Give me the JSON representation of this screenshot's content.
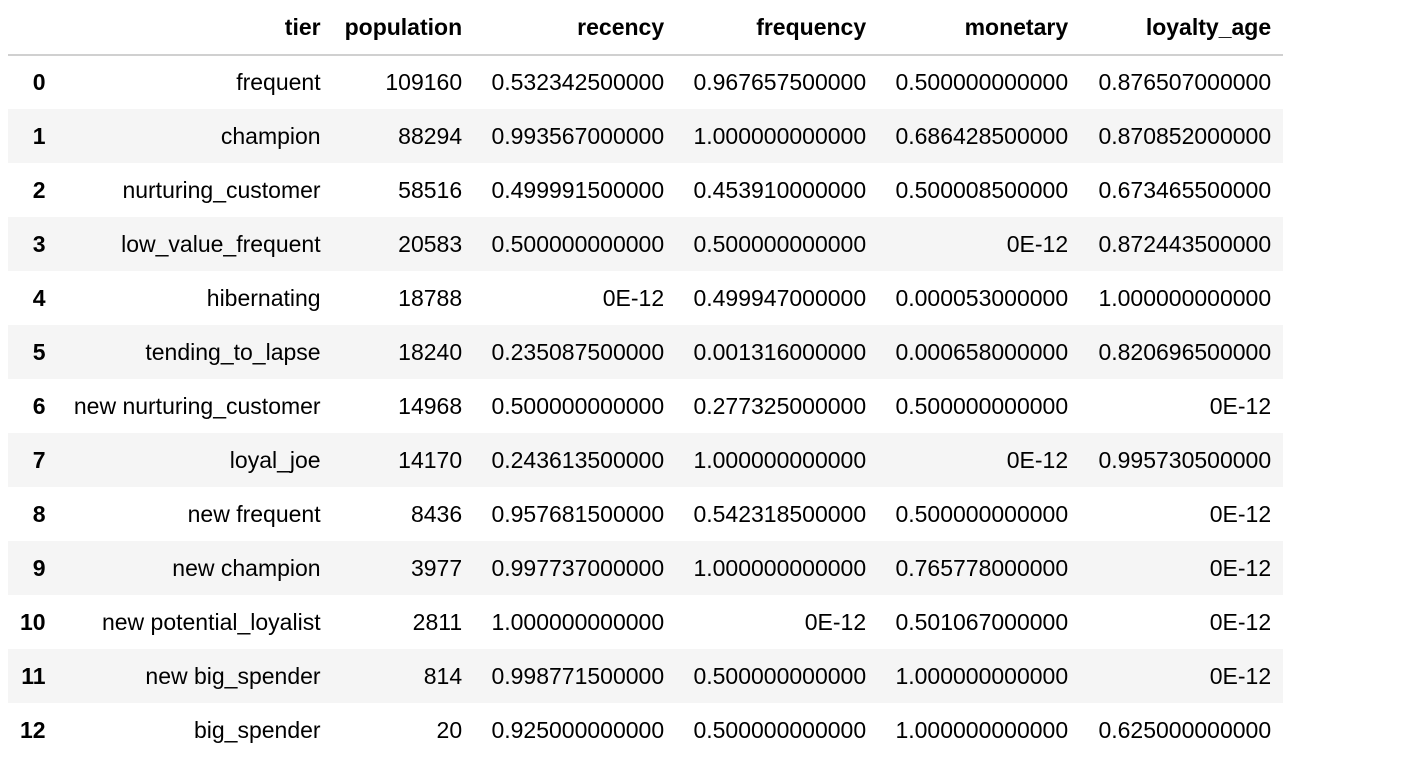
{
  "table": {
    "columns": [
      "",
      "tier",
      "population",
      "recency",
      "frequency",
      "monetary",
      "loyalty_age"
    ],
    "rows": [
      [
        "0",
        "frequent",
        "109160",
        "0.532342500000",
        "0.967657500000",
        "0.500000000000",
        "0.876507000000"
      ],
      [
        "1",
        "champion",
        "88294",
        "0.993567000000",
        "1.000000000000",
        "0.686428500000",
        "0.870852000000"
      ],
      [
        "2",
        "nurturing_customer",
        "58516",
        "0.499991500000",
        "0.453910000000",
        "0.500008500000",
        "0.673465500000"
      ],
      [
        "3",
        "low_value_frequent",
        "20583",
        "0.500000000000",
        "0.500000000000",
        "0E-12",
        "0.872443500000"
      ],
      [
        "4",
        "hibernating",
        "18788",
        "0E-12",
        "0.499947000000",
        "0.000053000000",
        "1.000000000000"
      ],
      [
        "5",
        "tending_to_lapse",
        "18240",
        "0.235087500000",
        "0.001316000000",
        "0.000658000000",
        "0.820696500000"
      ],
      [
        "6",
        "new nurturing_customer",
        "14968",
        "0.500000000000",
        "0.277325000000",
        "0.500000000000",
        "0E-12"
      ],
      [
        "7",
        "loyal_joe",
        "14170",
        "0.243613500000",
        "1.000000000000",
        "0E-12",
        "0.995730500000"
      ],
      [
        "8",
        "new frequent",
        "8436",
        "0.957681500000",
        "0.542318500000",
        "0.500000000000",
        "0E-12"
      ],
      [
        "9",
        "new champion",
        "3977",
        "0.997737000000",
        "1.000000000000",
        "0.765778000000",
        "0E-12"
      ],
      [
        "10",
        "new potential_loyalist",
        "2811",
        "1.000000000000",
        "0E-12",
        "0.501067000000",
        "0E-12"
      ],
      [
        "11",
        "new big_spender",
        "814",
        "0.998771500000",
        "0.500000000000",
        "1.000000000000",
        "0E-12"
      ],
      [
        "12",
        "big_spender",
        "20",
        "0.925000000000",
        "0.500000000000",
        "1.000000000000",
        "0.625000000000"
      ]
    ]
  }
}
